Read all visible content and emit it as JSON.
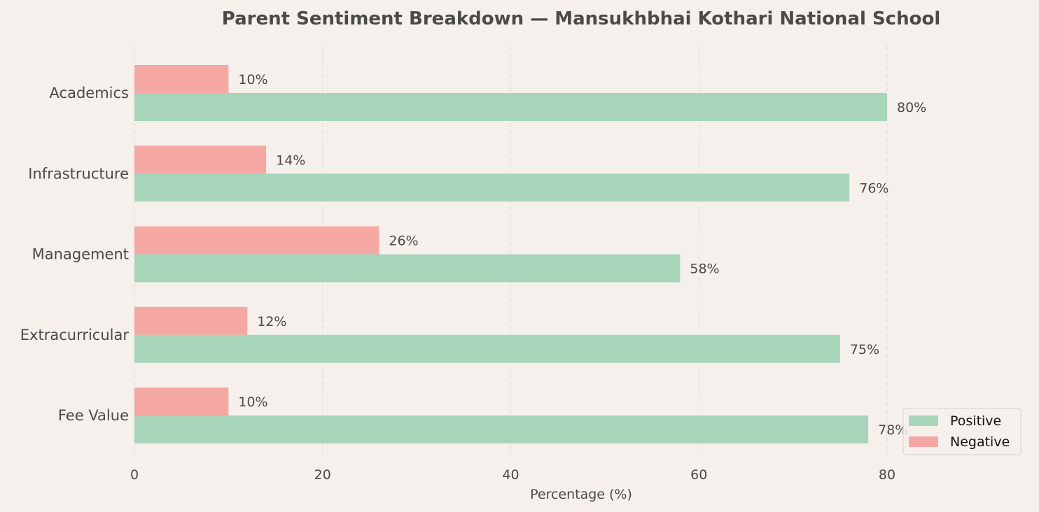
{
  "chart_data": {
    "type": "bar",
    "orientation": "horizontal",
    "title": "Parent Sentiment Breakdown — Mansukhbhai Kothari National School",
    "xlabel": "Percentage (%)",
    "ylabel": "",
    "categories": [
      "Academics",
      "Infrastructure",
      "Management",
      "Extracurricular",
      "Fee Value"
    ],
    "series": [
      {
        "name": "Positive",
        "values": [
          80,
          76,
          58,
          75,
          78
        ],
        "color": "#a8d5ba"
      },
      {
        "name": "Negative",
        "values": [
          10,
          14,
          26,
          12,
          10
        ],
        "color": "#f5a8a3"
      }
    ],
    "value_suffix": "%",
    "xlim": [
      0,
      95
    ],
    "xticks": [
      0,
      20,
      40,
      60,
      80
    ],
    "grid": "x, dashed",
    "legend_position": "lower-right",
    "colors": {
      "background": "#f5f0eb",
      "text": "#4a4a4a",
      "grid": "#e3ddd6"
    }
  }
}
